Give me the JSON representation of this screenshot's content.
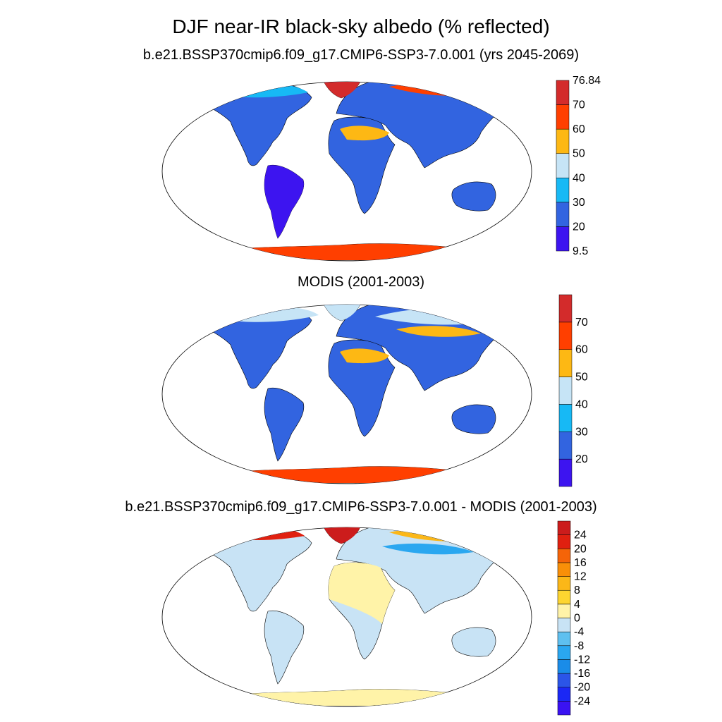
{
  "title": "DJF near-IR black-sky albedo (% reflected)",
  "panels": [
    {
      "title": "b.e21.BSSP370cmip6.f09_g17.CMIP6-SSP3-7.0.001 (yrs 2045-2069)",
      "colorbar": {
        "colors": [
          "#3d14f0",
          "#3264e0",
          "#17b9f5",
          "#c6e4f6",
          "#fdb814",
          "#ff3f00",
          "#d32b2b"
        ],
        "labels": [
          "9.5",
          "20",
          "30",
          "40",
          "50",
          "60",
          "70",
          "76.84"
        ]
      }
    },
    {
      "title": "MODIS (2001-2003)",
      "colorbar": {
        "colors": [
          "#3d14f0",
          "#3264e0",
          "#17b9f5",
          "#c6e4f6",
          "#fdb814",
          "#ff3f00",
          "#d32b2b"
        ],
        "labels": [
          "20",
          "30",
          "40",
          "50",
          "60",
          "70"
        ]
      }
    },
    {
      "title": "b.e21.BSSP370cmip6.f09_g17.CMIP6-SSP3-7.0.001 - MODIS (2001-2003)",
      "colorbar": {
        "colors": [
          "#3a12f2",
          "#1b28f5",
          "#2b55e8",
          "#1a8ce8",
          "#2aa7f0",
          "#5ec0f0",
          "#c8e3f5",
          "#fff3a8",
          "#fdd530",
          "#fbb718",
          "#f98f08",
          "#f56408",
          "#e02010",
          "#cc1c1c"
        ],
        "labels": [
          "-24",
          "-20",
          "-16",
          "-12",
          "-8",
          "-4",
          "0",
          "4",
          "8",
          "12",
          "16",
          "20",
          "24"
        ]
      }
    }
  ]
}
